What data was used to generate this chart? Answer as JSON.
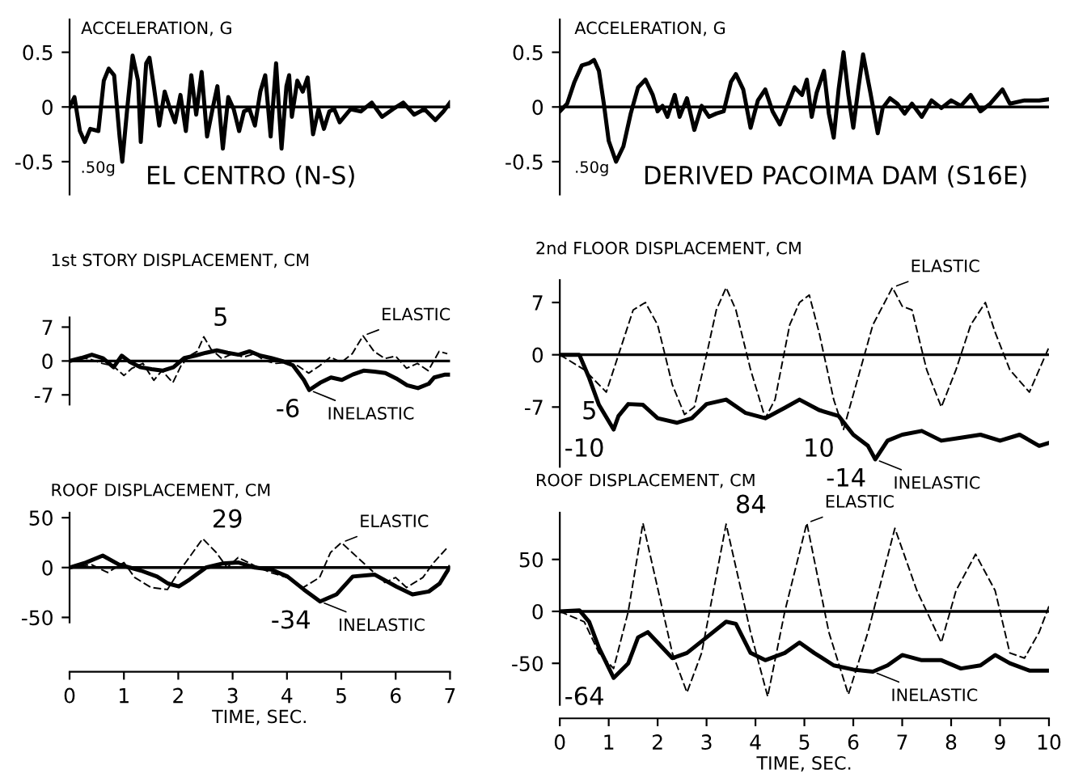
{
  "chart_data": [
    {
      "type": "line",
      "title": "ACCELERATION, G",
      "subtitle": "EL CENTRO (N-S)",
      "xlim": [
        0,
        7
      ],
      "ylim": [
        -0.8,
        0.8
      ],
      "yticks": [
        0.5,
        0,
        -0.5
      ],
      "tick_labels": "y",
      "grid": false,
      "ref_lines": [
        {
          "axis": "y",
          "value": 0,
          "color": "#000000"
        }
      ],
      "annotations": [
        {
          "text": ".50g",
          "x": 0.97,
          "y": -0.5
        }
      ],
      "series": [
        {
          "color": "#000000",
          "line_style": "solid",
          "x": [
            0,
            0.09,
            0.19,
            0.28,
            0.38,
            0.53,
            0.63,
            0.72,
            0.82,
            0.92,
            0.97,
            1.06,
            1.16,
            1.26,
            1.31,
            1.41,
            1.47,
            1.55,
            1.65,
            1.75,
            1.85,
            1.94,
            2.04,
            2.14,
            2.24,
            2.33,
            2.43,
            2.53,
            2.63,
            2.72,
            2.82,
            2.92,
            3.02,
            3.12,
            3.21,
            3.31,
            3.41,
            3.51,
            3.6,
            3.7,
            3.8,
            3.9,
            3.99,
            4.04,
            4.09,
            4.19,
            4.29,
            4.38,
            4.48,
            4.58,
            4.68,
            4.78,
            4.87,
            4.97,
            5.17,
            5.36,
            5.56,
            5.75,
            5.95,
            6.14,
            6.34,
            6.53,
            6.73,
            6.88,
            7.0
          ],
          "values": [
            0,
            0.09,
            -0.22,
            -0.32,
            -0.2,
            -0.22,
            0.24,
            0.35,
            0.29,
            -0.27,
            -0.5,
            -0.02,
            0.47,
            0.24,
            -0.32,
            0.4,
            0.45,
            0.19,
            -0.17,
            0.14,
            -0.02,
            -0.14,
            0.11,
            -0.22,
            0.29,
            -0.07,
            0.32,
            -0.27,
            -0.02,
            0.19,
            -0.38,
            0.09,
            -0.02,
            -0.22,
            -0.04,
            -0.02,
            -0.17,
            0.14,
            0.29,
            -0.27,
            0.4,
            -0.38,
            0.19,
            0.29,
            -0.09,
            0.24,
            0.14,
            0.27,
            -0.25,
            -0.02,
            -0.2,
            -0.04,
            -0.02,
            -0.14,
            -0.02,
            -0.04,
            0.04,
            -0.09,
            -0.02,
            0.04,
            -0.07,
            -0.02,
            -0.12,
            -0.04,
            0.04
          ]
        }
      ]
    },
    {
      "type": "line",
      "title": "ACCELERATION, G",
      "subtitle": "DERIVED PACOIMA DAM (S16E)",
      "xlim": [
        0,
        10
      ],
      "ylim": [
        -0.8,
        0.8
      ],
      "yticks": [
        0.5,
        0,
        -0.5
      ],
      "tick_labels": "y",
      "grid": false,
      "ref_lines": [
        {
          "axis": "y",
          "value": 0,
          "color": "#000000"
        }
      ],
      "annotations": [
        {
          "text": ".50g",
          "x": 1.15,
          "y": -0.5
        }
      ],
      "series": [
        {
          "color": "#000000",
          "line_style": "solid",
          "x": [
            0,
            0.15,
            0.3,
            0.45,
            0.6,
            0.7,
            0.8,
            0.9,
            1.0,
            1.15,
            1.3,
            1.45,
            1.6,
            1.75,
            1.9,
            2.0,
            2.1,
            2.2,
            2.35,
            2.45,
            2.6,
            2.75,
            2.9,
            3.05,
            3.2,
            3.35,
            3.5,
            3.6,
            3.75,
            3.9,
            4.05,
            4.2,
            4.35,
            4.5,
            4.65,
            4.8,
            4.95,
            5.05,
            5.15,
            5.25,
            5.4,
            5.5,
            5.6,
            5.7,
            5.8,
            5.9,
            6.0,
            6.1,
            6.2,
            6.35,
            6.5,
            6.6,
            6.75,
            6.9,
            7.05,
            7.2,
            7.4,
            7.6,
            7.8,
            8.0,
            8.2,
            8.4,
            8.6,
            8.8,
            9.05,
            9.2,
            9.5,
            9.8,
            10.0
          ],
          "values": [
            -0.04,
            0.03,
            0.23,
            0.38,
            0.4,
            0.43,
            0.33,
            0.03,
            -0.31,
            -0.5,
            -0.36,
            -0.06,
            0.18,
            0.25,
            0.11,
            -0.04,
            0.01,
            -0.09,
            0.11,
            -0.09,
            0.08,
            -0.21,
            0.01,
            -0.09,
            -0.06,
            -0.04,
            0.23,
            0.3,
            0.16,
            -0.19,
            0.06,
            0.16,
            -0.04,
            -0.16,
            0.01,
            0.18,
            0.11,
            0.25,
            -0.09,
            0.13,
            0.33,
            -0.06,
            -0.28,
            0.16,
            0.5,
            0.11,
            -0.19,
            0.16,
            0.48,
            0.13,
            -0.24,
            -0.01,
            0.08,
            0.03,
            -0.06,
            0.03,
            -0.09,
            0.06,
            -0.01,
            0.06,
            0.01,
            0.11,
            -0.04,
            0.03,
            0.16,
            0.03,
            0.06,
            0.06,
            0.07
          ]
        }
      ]
    },
    {
      "type": "line",
      "title": "1st STORY DISPLACEMENT, CM",
      "xlim": [
        0,
        7
      ],
      "ylim": [
        -9,
        9
      ],
      "yticks": [
        7,
        0,
        -7
      ],
      "tick_labels": "y",
      "grid": false,
      "legend": "right",
      "ref_lines": [
        {
          "axis": "y",
          "value": 0,
          "color": "#000000"
        }
      ],
      "annotations": [
        {
          "text": "5",
          "x": 2.47,
          "y": 5
        },
        {
          "text": "-6",
          "x": 4.41,
          "y": -6
        }
      ],
      "series": [
        {
          "name": "ELASTIC",
          "color": "#000000",
          "line_style": "dashed",
          "x": [
            0,
            0.2,
            0.4,
            0.6,
            0.8,
            1.0,
            1.15,
            1.35,
            1.55,
            1.7,
            1.9,
            2.05,
            2.2,
            2.35,
            2.47,
            2.6,
            2.8,
            3.0,
            3.2,
            3.4,
            3.6,
            3.8,
            4.0,
            4.2,
            4.4,
            4.6,
            4.8,
            5.0,
            5.2,
            5.4,
            5.6,
            5.8,
            6.0,
            6.2,
            6.4,
            6.6,
            6.8,
            6.95
          ],
          "values": [
            0,
            0.8,
            0.3,
            -0.5,
            -1,
            -3,
            -1.5,
            -0.5,
            -4,
            -2,
            -4.5,
            -1,
            1,
            2,
            5,
            2.5,
            0.5,
            1.5,
            0.8,
            1.5,
            0,
            -0.5,
            -0.3,
            -1,
            -2.5,
            -1,
            0.8,
            -0.3,
            1.5,
            5.2,
            2,
            0.5,
            1,
            -1.5,
            -0.5,
            -2,
            2,
            1.5
          ]
        },
        {
          "name": "INELASTIC",
          "color": "#000000",
          "line_style": "solid",
          "x": [
            0,
            0.21,
            0.41,
            0.61,
            0.81,
            0.96,
            1.11,
            1.31,
            1.51,
            1.71,
            1.91,
            2.11,
            2.31,
            2.51,
            2.71,
            2.91,
            3.11,
            3.31,
            3.51,
            3.71,
            3.91,
            4.11,
            4.31,
            4.41,
            4.61,
            4.81,
            5.01,
            5.21,
            5.41,
            5.61,
            5.81,
            6.01,
            6.21,
            6.41,
            6.61,
            6.71,
            6.91,
            6.99
          ],
          "values": [
            0,
            0.6,
            1.3,
            0.6,
            -1.3,
            1.1,
            -0.2,
            -1.3,
            -1.7,
            -2,
            -1.3,
            0.6,
            1.1,
            1.7,
            2.2,
            1.7,
            1.3,
            2,
            1.1,
            0.6,
            0,
            -0.9,
            -3.9,
            -6,
            -4.5,
            -3.4,
            -3.9,
            -2.8,
            -2,
            -2.2,
            -2.5,
            -3.6,
            -5,
            -5.6,
            -4.7,
            -3.4,
            -2.8,
            -2.8
          ]
        }
      ]
    },
    {
      "type": "line",
      "title": "2nd FLOOR DISPLACEMENT, CM",
      "xlim": [
        0,
        10
      ],
      "ylim": [
        -15,
        10
      ],
      "yticks": [
        7,
        0,
        -7
      ],
      "tick_labels": "y",
      "grid": false,
      "legend": "right",
      "ref_lines": [
        {
          "axis": "y",
          "value": 0,
          "color": "#000000"
        }
      ],
      "annotations": [
        {
          "text": "5",
          "x": 0.95,
          "y": -5
        },
        {
          "text": "-10",
          "x": 1.1,
          "y": -10
        },
        {
          "text": "10",
          "x": 5.8,
          "y": -10
        },
        {
          "text": "-14",
          "x": 6.45,
          "y": -14
        }
      ],
      "series": [
        {
          "name": "ELASTIC",
          "color": "#000000",
          "line_style": "dashed",
          "x": [
            0,
            0.5,
            0.95,
            1.2,
            1.5,
            1.75,
            2.0,
            2.3,
            2.55,
            2.75,
            3.0,
            3.2,
            3.4,
            3.6,
            3.9,
            4.2,
            4.4,
            4.7,
            4.9,
            5.1,
            5.3,
            5.6,
            5.8,
            6.1,
            6.4,
            6.8,
            7.0,
            7.2,
            7.5,
            7.8,
            8.1,
            8.4,
            8.7,
            8.9,
            9.2,
            9.6,
            10.0
          ],
          "values": [
            0,
            -2,
            -5,
            0,
            6,
            7,
            4,
            -4,
            -8,
            -7,
            0,
            6,
            9,
            6,
            -2,
            -8.5,
            -6,
            4,
            7,
            8,
            3,
            -6,
            -10,
            -3,
            4,
            9,
            6.5,
            6,
            -2,
            -7,
            -2,
            4,
            7,
            3,
            -2,
            -5,
            1
          ]
        },
        {
          "name": "INELASTIC",
          "color": "#000000",
          "line_style": "solid",
          "x": [
            0,
            0.4,
            0.6,
            0.8,
            1.1,
            1.2,
            1.4,
            1.7,
            2.0,
            2.4,
            2.7,
            3.0,
            3.4,
            3.8,
            4.2,
            4.6,
            4.9,
            5.3,
            5.7,
            6.0,
            6.3,
            6.45,
            6.7,
            7.0,
            7.4,
            7.8,
            8.2,
            8.6,
            9.0,
            9.4,
            9.8,
            10.0
          ],
          "values": [
            0,
            0,
            -3.1,
            -6.7,
            -10,
            -8.2,
            -6.6,
            -6.7,
            -8.5,
            -9.1,
            -8.5,
            -6.6,
            -6,
            -7.8,
            -8.5,
            -7.1,
            -6,
            -7.4,
            -8.2,
            -10.7,
            -12.2,
            -14,
            -11.5,
            -10.7,
            -10.2,
            -11.5,
            -11.1,
            -10.7,
            -11.5,
            -10.7,
            -12.2,
            -11.8
          ]
        }
      ]
    },
    {
      "type": "line",
      "title": "ROOF DISPLACEMENT, CM",
      "xlabel": "TIME, SEC.",
      "xlim": [
        0,
        7
      ],
      "xticks": [
        0,
        1,
        2,
        3,
        4,
        5,
        6,
        7
      ],
      "ylim": [
        -55,
        55
      ],
      "yticks": [
        50,
        0,
        -50
      ],
      "grid": false,
      "legend": "right",
      "ref_lines": [
        {
          "axis": "y",
          "value": 0,
          "color": "#000000"
        }
      ],
      "annotations": [
        {
          "text": "29",
          "x": 2.45,
          "y": 29
        },
        {
          "text": "-34",
          "x": 4.61,
          "y": -34
        }
      ],
      "series": [
        {
          "name": "ELASTIC",
          "color": "#000000",
          "line_style": "dashed",
          "x": [
            0,
            0.4,
            0.7,
            1.0,
            1.2,
            1.5,
            1.8,
            2.0,
            2.2,
            2.45,
            2.7,
            2.9,
            3.1,
            3.4,
            3.7,
            4.0,
            4.3,
            4.6,
            4.8,
            5.0,
            5.2,
            5.5,
            5.8,
            6.0,
            6.2,
            6.5,
            6.7,
            6.95
          ],
          "values": [
            0,
            3,
            -5,
            5,
            -10,
            -20,
            -22,
            -5,
            10,
            29,
            15,
            0,
            10,
            2,
            -5,
            -10,
            -20,
            -10,
            15,
            25,
            15,
            0,
            -15,
            -10,
            -20,
            -10,
            5,
            20
          ]
        },
        {
          "name": "INELASTIC",
          "color": "#000000",
          "line_style": "solid",
          "x": [
            0,
            0.3,
            0.61,
            0.91,
            1.31,
            1.61,
            1.81,
            2.01,
            2.21,
            2.51,
            2.81,
            3.11,
            3.41,
            3.71,
            4.01,
            4.31,
            4.61,
            4.91,
            5.21,
            5.61,
            6.01,
            6.31,
            6.61,
            6.81,
            6.99
          ],
          "values": [
            0,
            5,
            12,
            3,
            -3,
            -9,
            -16,
            -19,
            -12,
            0,
            4,
            5,
            0,
            -2,
            -9,
            -22,
            -34,
            -27,
            -9,
            -7,
            -19,
            -27,
            -24,
            -16,
            0
          ]
        }
      ]
    },
    {
      "type": "line",
      "title": "ROOF DISPLACEMENT, CM",
      "xlabel": "TIME, SEC.",
      "xlim": [
        0,
        10
      ],
      "xticks": [
        0,
        1,
        2,
        3,
        4,
        5,
        6,
        7,
        8,
        9,
        10
      ],
      "ylim": [
        -90,
        95
      ],
      "yticks": [
        50,
        0,
        -50
      ],
      "grid": false,
      "legend": "right",
      "ref_lines": [
        {
          "axis": "y",
          "value": 0,
          "color": "#000000"
        }
      ],
      "annotations": [
        {
          "text": "84",
          "x": 3.4,
          "y": 84
        },
        {
          "text": "-64",
          "x": 1.1,
          "y": -64
        }
      ],
      "series": [
        {
          "name": "ELASTIC",
          "color": "#000000",
          "line_style": "dashed",
          "x": [
            0,
            0.5,
            0.8,
            1.1,
            1.4,
            1.7,
            2.3,
            2.6,
            2.9,
            3.4,
            3.9,
            4.25,
            4.6,
            5.05,
            5.5,
            5.9,
            6.3,
            6.85,
            7.3,
            7.8,
            8.1,
            8.5,
            8.9,
            9.2,
            9.5,
            9.8,
            10.0
          ],
          "values": [
            0,
            -10,
            -40,
            -55,
            0,
            85,
            -40,
            -78,
            -40,
            84,
            -20,
            -82,
            0,
            85,
            -20,
            -80,
            -20,
            80,
            20,
            -30,
            20,
            55,
            20,
            -40,
            -45,
            -20,
            5
          ]
        },
        {
          "name": "INELASTIC",
          "color": "#000000",
          "line_style": "solid",
          "x": [
            0,
            0.4,
            0.6,
            0.8,
            1.1,
            1.4,
            1.6,
            1.8,
            2.0,
            2.3,
            2.6,
            3.0,
            3.4,
            3.6,
            3.9,
            4.2,
            4.6,
            4.9,
            5.2,
            5.6,
            6.0,
            6.4,
            6.7,
            7.0,
            7.4,
            7.8,
            8.2,
            8.6,
            8.9,
            9.2,
            9.6,
            10.0
          ],
          "values": [
            0,
            1,
            -10,
            -35,
            -64,
            -50,
            -25,
            -20,
            -30,
            -45,
            -40,
            -25,
            -10,
            -12,
            -40,
            -47,
            -40,
            -30,
            -40,
            -52,
            -56,
            -58,
            -52,
            -42,
            -47,
            -47,
            -55,
            -52,
            -42,
            -50,
            -57,
            -57
          ]
        }
      ]
    }
  ]
}
